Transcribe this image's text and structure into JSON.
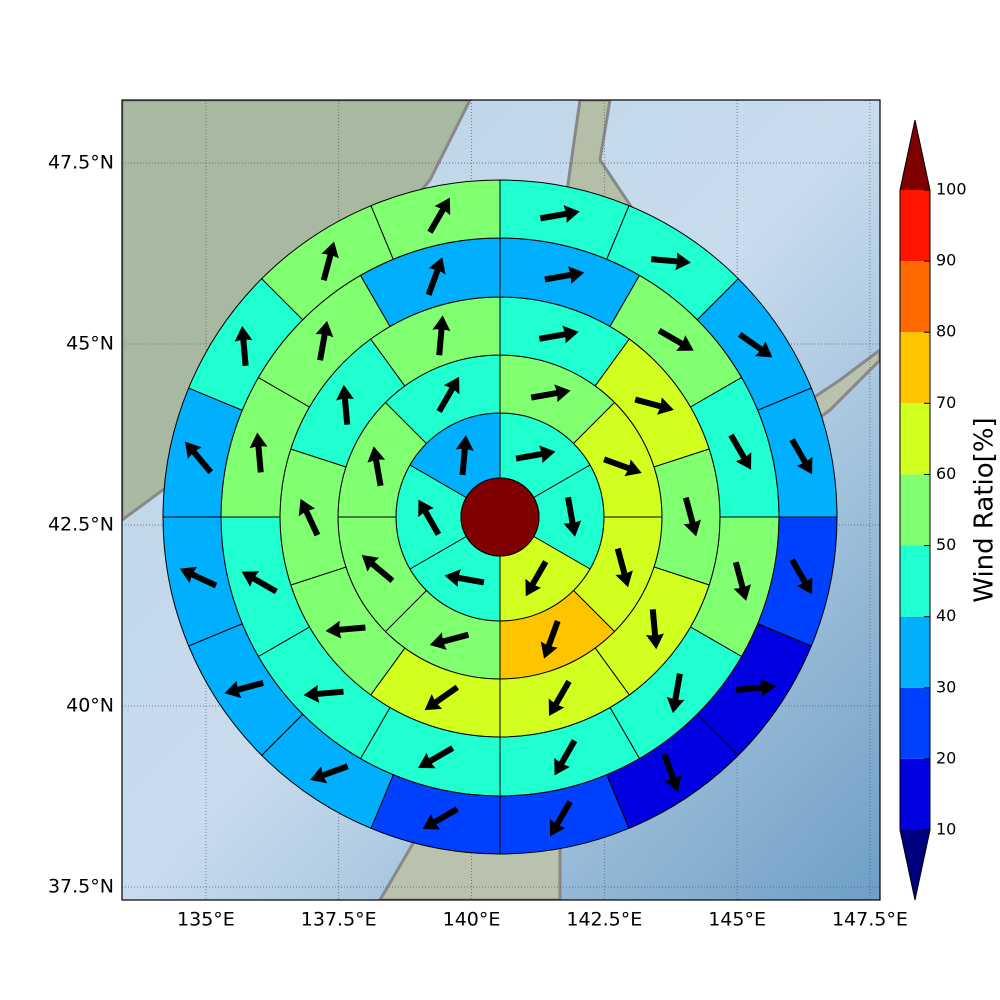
{
  "map": {
    "xlim": [
      133.42,
      147.69
    ],
    "ylim": [
      37.32,
      48.37
    ],
    "grid": true,
    "xticks": [
      {
        "value": 135,
        "label": "135°E"
      },
      {
        "value": 137.5,
        "label": "137.5°E"
      },
      {
        "value": 140,
        "label": "140°E"
      },
      {
        "value": 142.5,
        "label": "142.5°E"
      },
      {
        "value": 145,
        "label": "145°E"
      },
      {
        "value": 147.5,
        "label": "147.5°E"
      }
    ],
    "yticks": [
      {
        "value": 37.5,
        "label": "37.5°N"
      },
      {
        "value": 40,
        "label": "40°N"
      },
      {
        "value": 42.5,
        "label": "42.5°N"
      },
      {
        "value": 45,
        "label": "45°N"
      },
      {
        "value": 47.5,
        "label": "47.5°N"
      }
    ]
  },
  "polar": {
    "center_value": 105,
    "rings": [
      {
        "values": [
          45,
          45,
          65,
          45,
          45,
          35
        ],
        "directions": [
          80,
          170,
          210,
          280,
          330,
          5
        ]
      },
      {
        "values": [
          55,
          65,
          65,
          75,
          55,
          55,
          55,
          45
        ],
        "directions": [
          80,
          110,
          165,
          200,
          255,
          310,
          350,
          30
        ]
      },
      {
        "values": [
          45,
          65,
          55,
          65,
          65,
          65,
          55,
          55,
          45,
          55
        ],
        "directions": [
          80,
          105,
          165,
          175,
          210,
          235,
          265,
          335,
          355,
          5
        ]
      },
      {
        "values": [
          35,
          55,
          45,
          55,
          45,
          45,
          45,
          45,
          45,
          55,
          55,
          35
        ],
        "directions": [
          80,
          120,
          150,
          165,
          190,
          210,
          240,
          265,
          300,
          355,
          10,
          20
        ]
      },
      {
        "values": [
          45,
          45,
          35,
          35,
          25,
          15,
          15,
          25,
          25,
          35,
          35,
          35,
          35,
          45,
          55,
          55
        ],
        "directions": [
          80,
          95,
          125,
          150,
          150,
          85,
          160,
          210,
          240,
          250,
          255,
          295,
          320,
          355,
          15,
          30
        ]
      }
    ]
  },
  "colorbar": {
    "label": "Wind Ratio[%]",
    "levels": [
      10,
      20,
      30,
      40,
      50,
      60,
      70,
      80,
      90,
      100
    ],
    "colors": [
      "#0000e0",
      "#0040ff",
      "#00b0ff",
      "#20ffd0",
      "#80ff70",
      "#d0ff20",
      "#ffc400",
      "#ff6a00",
      "#ff1400"
    ],
    "under_color": "#00007f",
    "over_color": "#7f0000"
  }
}
